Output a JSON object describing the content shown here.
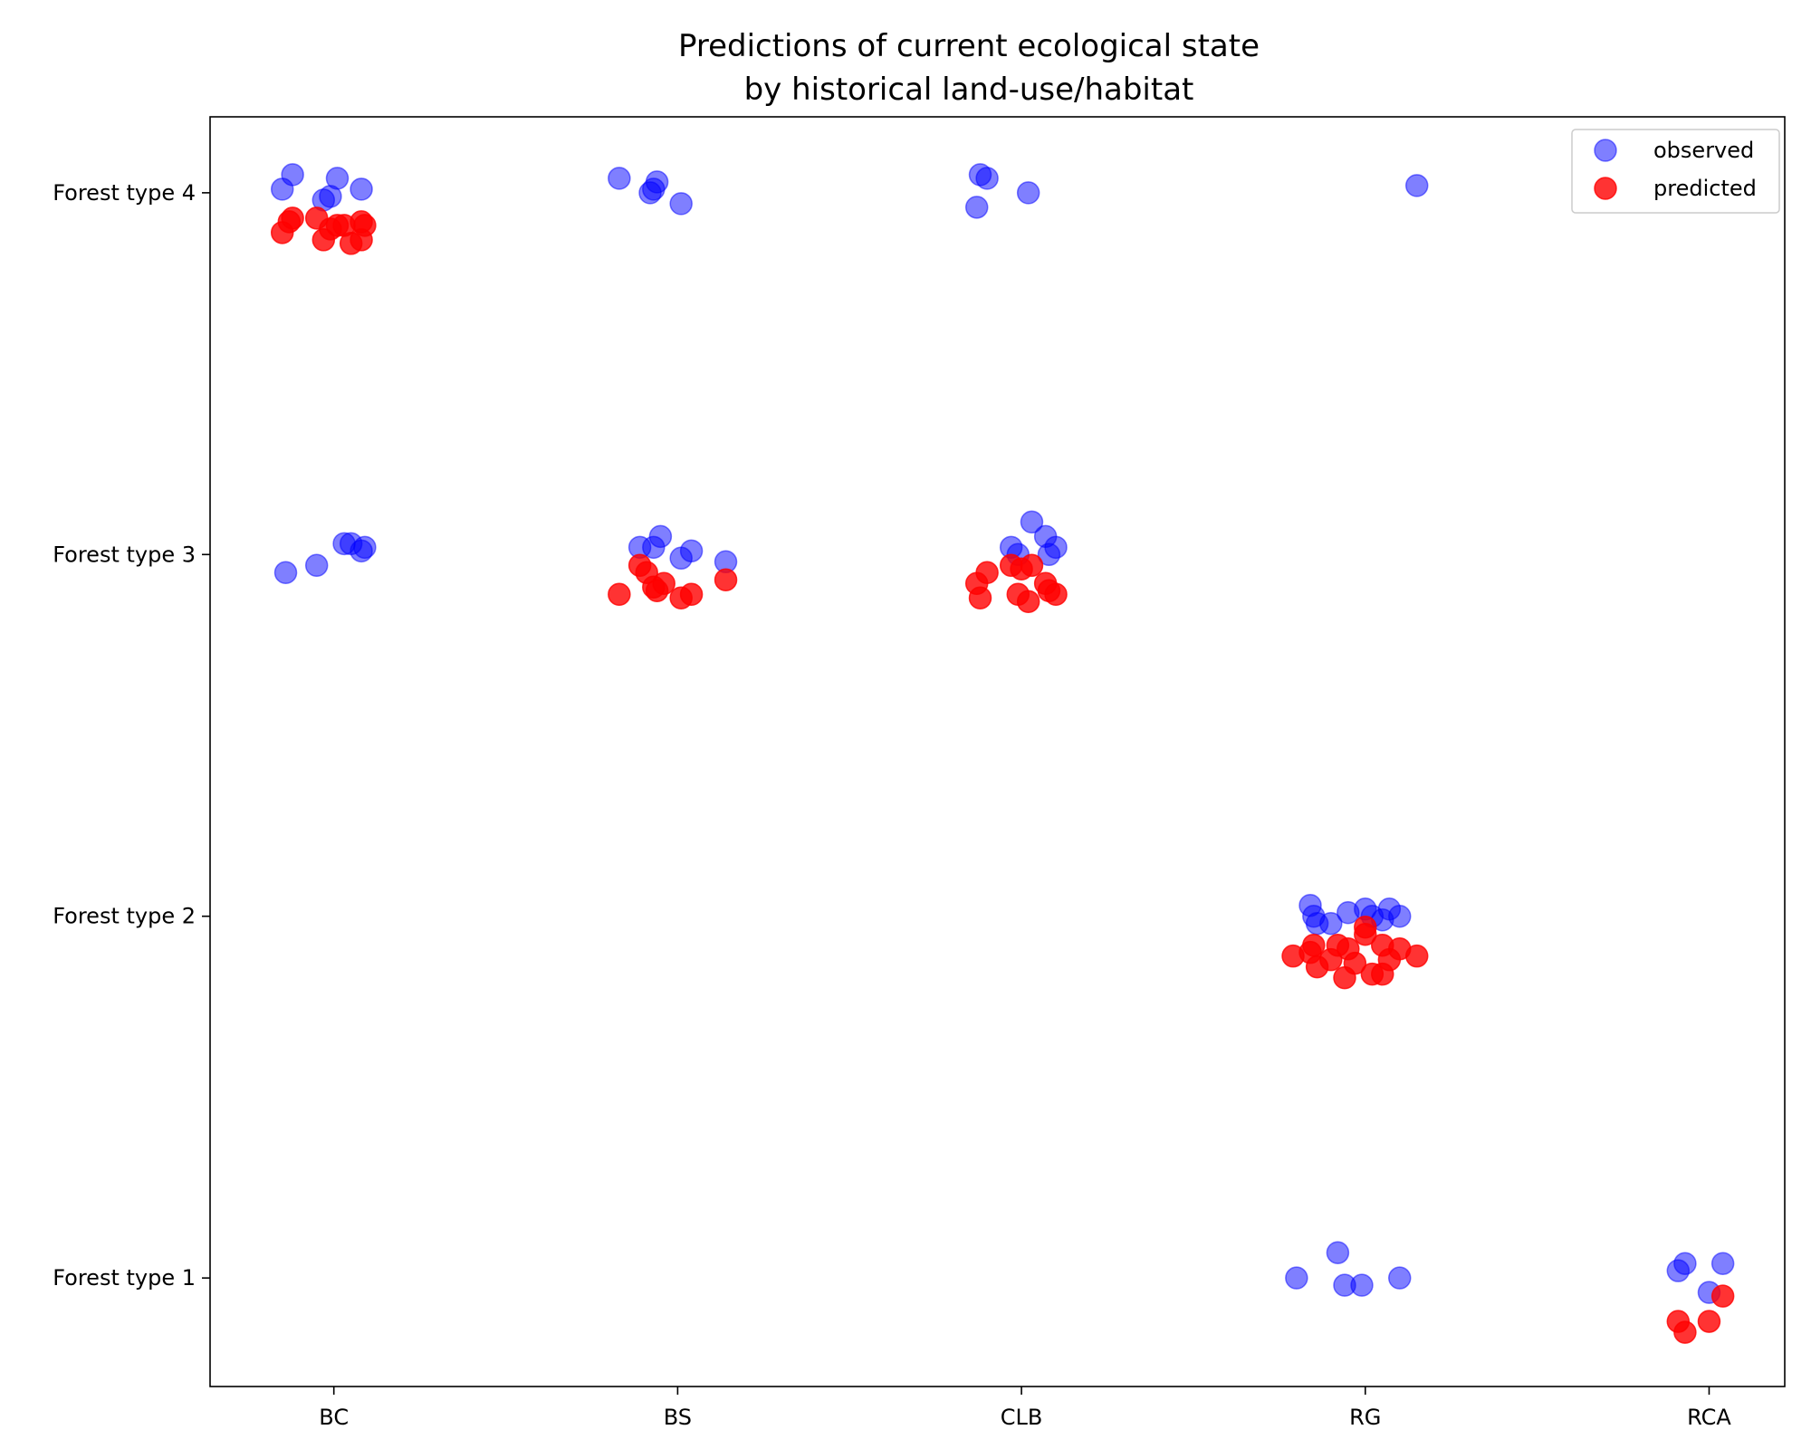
{
  "chart_data": {
    "type": "scatter",
    "title": [
      "Predictions of current ecological state",
      "by historical land-use/habitat"
    ],
    "xlabel": "",
    "ylabel": "",
    "categories": [
      "BC",
      "BS",
      "CLB",
      "RG",
      "RCA"
    ],
    "y_categories": [
      "Forest type 1",
      "Forest type 2",
      "Forest type 3",
      "Forest type 4"
    ],
    "ylim": [
      0.7,
      4.21
    ],
    "xlim": [
      -0.36,
      4.22
    ],
    "grid": false,
    "legend_position": "top-right",
    "series": [
      {
        "name": "observed",
        "color": "#0000ff",
        "opacity": 0.5,
        "points": [
          {
            "x": -0.15,
            "y": 4.01
          },
          {
            "x": -0.12,
            "y": 4.05
          },
          {
            "x": -0.03,
            "y": 3.98
          },
          {
            "x": -0.01,
            "y": 3.99
          },
          {
            "x": 0.01,
            "y": 4.04
          },
          {
            "x": 0.08,
            "y": 4.01
          },
          {
            "x": -0.14,
            "y": 2.95
          },
          {
            "x": -0.05,
            "y": 2.97
          },
          {
            "x": 0.03,
            "y": 3.03
          },
          {
            "x": 0.05,
            "y": 3.03
          },
          {
            "x": 0.08,
            "y": 3.01
          },
          {
            "x": 0.09,
            "y": 3.02
          },
          {
            "x": 0.83,
            "y": 4.04
          },
          {
            "x": 0.92,
            "y": 4.0
          },
          {
            "x": 0.93,
            "y": 4.01
          },
          {
            "x": 0.94,
            "y": 4.03
          },
          {
            "x": 1.01,
            "y": 3.97
          },
          {
            "x": 0.89,
            "y": 3.02
          },
          {
            "x": 0.93,
            "y": 3.02
          },
          {
            "x": 0.95,
            "y": 3.05
          },
          {
            "x": 1.01,
            "y": 2.99
          },
          {
            "x": 1.04,
            "y": 3.01
          },
          {
            "x": 1.14,
            "y": 2.98
          },
          {
            "x": 1.87,
            "y": 3.96
          },
          {
            "x": 1.88,
            "y": 4.05
          },
          {
            "x": 1.9,
            "y": 4.04
          },
          {
            "x": 2.02,
            "y": 4.0
          },
          {
            "x": 1.97,
            "y": 3.02
          },
          {
            "x": 1.99,
            "y": 3.0
          },
          {
            "x": 2.03,
            "y": 3.09
          },
          {
            "x": 2.07,
            "y": 3.05
          },
          {
            "x": 2.08,
            "y": 3.0
          },
          {
            "x": 2.1,
            "y": 3.02
          },
          {
            "x": 3.15,
            "y": 4.02
          },
          {
            "x": 2.84,
            "y": 2.03
          },
          {
            "x": 2.85,
            "y": 2.0
          },
          {
            "x": 2.86,
            "y": 1.98
          },
          {
            "x": 2.9,
            "y": 1.98
          },
          {
            "x": 2.95,
            "y": 2.01
          },
          {
            "x": 3.0,
            "y": 2.02
          },
          {
            "x": 3.02,
            "y": 2.0
          },
          {
            "x": 3.05,
            "y": 1.99
          },
          {
            "x": 3.07,
            "y": 2.02
          },
          {
            "x": 3.1,
            "y": 2.0
          },
          {
            "x": 2.8,
            "y": 1.0
          },
          {
            "x": 2.92,
            "y": 1.07
          },
          {
            "x": 2.94,
            "y": 0.98
          },
          {
            "x": 2.99,
            "y": 0.98
          },
          {
            "x": 3.1,
            "y": 1.0
          },
          {
            "x": 3.91,
            "y": 1.02
          },
          {
            "x": 3.93,
            "y": 1.04
          },
          {
            "x": 4.0,
            "y": 0.96
          },
          {
            "x": 4.04,
            "y": 1.04
          }
        ]
      },
      {
        "name": "predicted",
        "color": "#ff0000",
        "opacity": 0.8,
        "points": [
          {
            "x": -0.15,
            "y": 3.89
          },
          {
            "x": -0.13,
            "y": 3.92
          },
          {
            "x": -0.12,
            "y": 3.93
          },
          {
            "x": -0.05,
            "y": 3.93
          },
          {
            "x": -0.03,
            "y": 3.87
          },
          {
            "x": -0.01,
            "y": 3.9
          },
          {
            "x": 0.01,
            "y": 3.91
          },
          {
            "x": 0.03,
            "y": 3.91
          },
          {
            "x": 0.05,
            "y": 3.86
          },
          {
            "x": 0.08,
            "y": 3.92
          },
          {
            "x": 0.08,
            "y": 3.87
          },
          {
            "x": 0.09,
            "y": 3.91
          },
          {
            "x": 0.83,
            "y": 2.89
          },
          {
            "x": 0.89,
            "y": 2.97
          },
          {
            "x": 0.91,
            "y": 2.95
          },
          {
            "x": 0.93,
            "y": 2.91
          },
          {
            "x": 0.94,
            "y": 2.9
          },
          {
            "x": 0.96,
            "y": 2.92
          },
          {
            "x": 1.01,
            "y": 2.88
          },
          {
            "x": 1.04,
            "y": 2.89
          },
          {
            "x": 1.14,
            "y": 2.93
          },
          {
            "x": 1.87,
            "y": 2.92
          },
          {
            "x": 1.88,
            "y": 2.88
          },
          {
            "x": 1.9,
            "y": 2.95
          },
          {
            "x": 1.97,
            "y": 2.97
          },
          {
            "x": 1.99,
            "y": 2.89
          },
          {
            "x": 2.0,
            "y": 2.96
          },
          {
            "x": 2.02,
            "y": 2.87
          },
          {
            "x": 2.03,
            "y": 2.97
          },
          {
            "x": 2.07,
            "y": 2.92
          },
          {
            "x": 2.08,
            "y": 2.9
          },
          {
            "x": 2.1,
            "y": 2.89
          },
          {
            "x": 2.79,
            "y": 1.89
          },
          {
            "x": 2.84,
            "y": 1.9
          },
          {
            "x": 2.85,
            "y": 1.92
          },
          {
            "x": 2.86,
            "y": 1.86
          },
          {
            "x": 2.9,
            "y": 1.88
          },
          {
            "x": 2.92,
            "y": 1.92
          },
          {
            "x": 2.94,
            "y": 1.83
          },
          {
            "x": 2.95,
            "y": 1.91
          },
          {
            "x": 2.97,
            "y": 1.87
          },
          {
            "x": 3.0,
            "y": 1.97
          },
          {
            "x": 3.0,
            "y": 1.95
          },
          {
            "x": 3.02,
            "y": 1.84
          },
          {
            "x": 3.05,
            "y": 1.92
          },
          {
            "x": 3.05,
            "y": 1.84
          },
          {
            "x": 3.07,
            "y": 1.88
          },
          {
            "x": 3.1,
            "y": 1.91
          },
          {
            "x": 3.15,
            "y": 1.89
          },
          {
            "x": 3.91,
            "y": 0.88
          },
          {
            "x": 3.93,
            "y": 0.85
          },
          {
            "x": 4.0,
            "y": 0.88
          },
          {
            "x": 4.04,
            "y": 0.95
          }
        ]
      }
    ]
  }
}
